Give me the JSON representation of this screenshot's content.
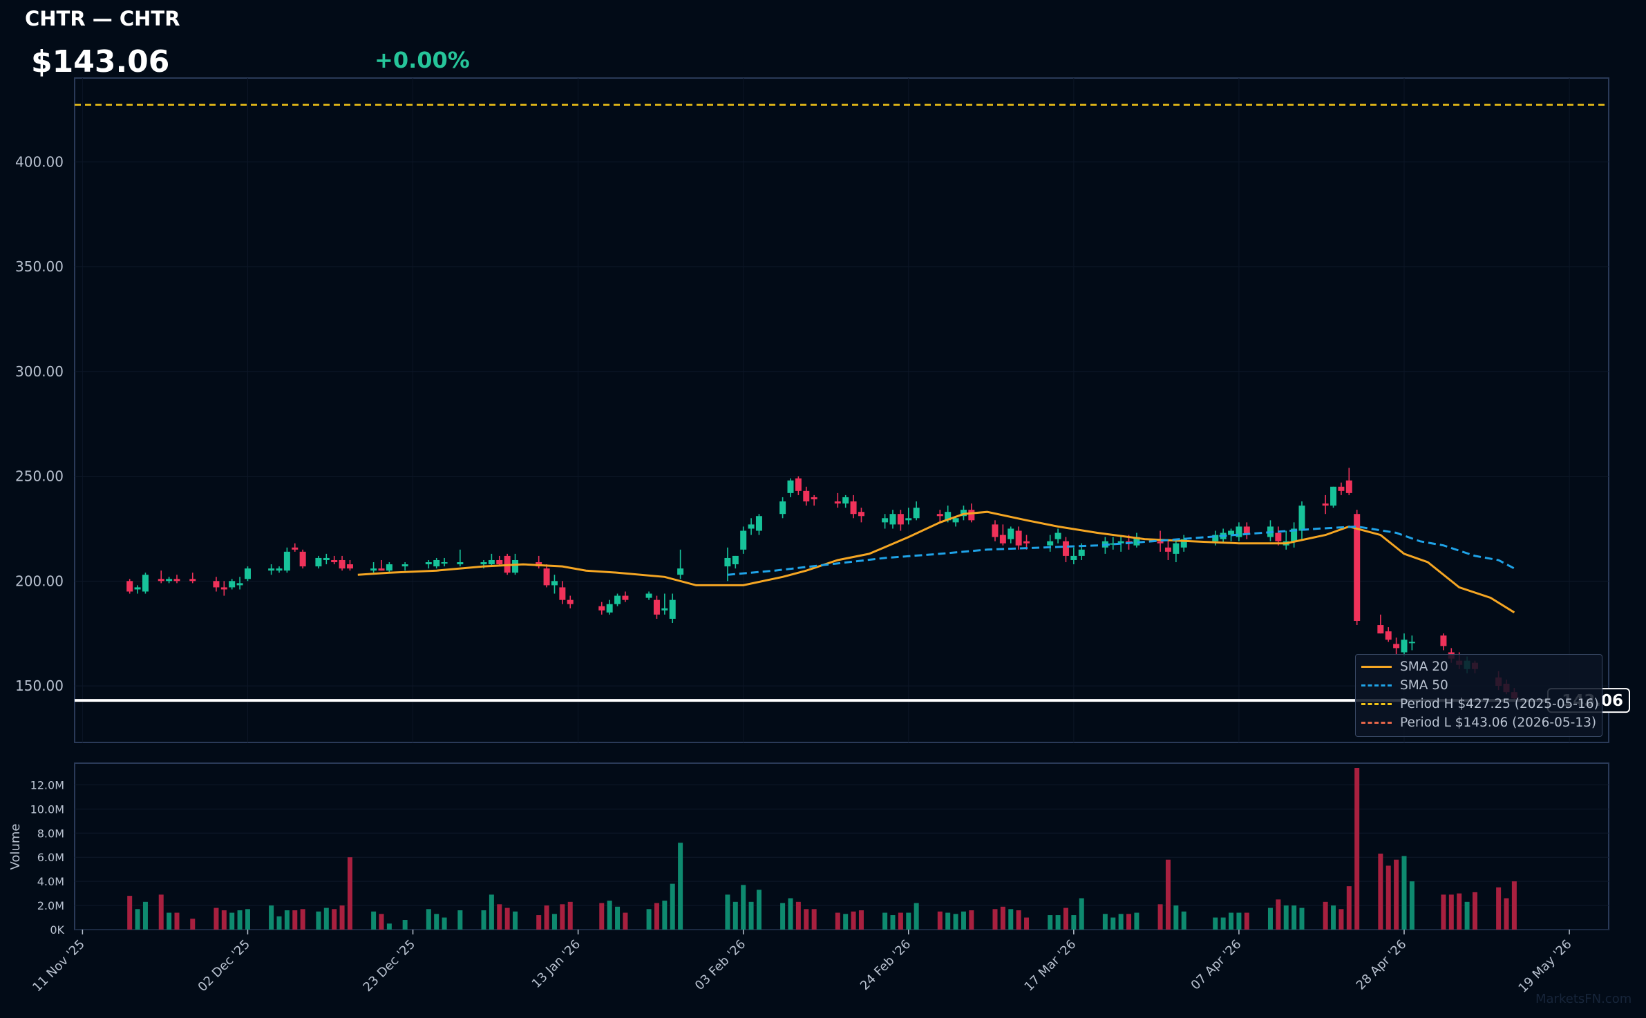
{
  "header": {
    "title": "CHTR — CHTR",
    "price": "$143.06",
    "change": "+0.00%"
  },
  "last_price_label": "143.06",
  "watermark": "MarketsFN.com",
  "legend": {
    "items": [
      {
        "label": "SMA 20",
        "color": "#f5a623",
        "style": "solid"
      },
      {
        "label": "SMA 50",
        "color": "#1fa3e8",
        "style": "dashed"
      },
      {
        "label": "Period H $427.25 (2025-05-16)",
        "color": "#f2c418",
        "style": "dashed"
      },
      {
        "label": "Period L $143.06 (2026-05-13)",
        "color": "#e8674a",
        "style": "dashed"
      }
    ]
  },
  "colors": {
    "up": "#17c39a",
    "down": "#f0325a",
    "vol_up": "#0e8a6f",
    "vol_down": "#a8203f",
    "sma20": "#f5a623",
    "sma50": "#1fa3e8",
    "period_high": "#f2c418",
    "last_price": "#ffffff",
    "background": "#020b17",
    "panel_border": "#2a3a58"
  },
  "chart_data": {
    "type": "candlestick",
    "price_axis": {
      "ticks": [
        "150.00",
        "200.00",
        "250.00",
        "300.00",
        "350.00",
        "400.00"
      ],
      "ylim": [
        123,
        440
      ]
    },
    "volume_axis": {
      "label": "Volume",
      "ticks": [
        "0K",
        "2.0M",
        "4.0M",
        "6.0M",
        "8.0M",
        "10.0M",
        "12.0M"
      ],
      "ylim": [
        0,
        13800000
      ]
    },
    "x_axis": {
      "ticks": [
        "11 Nov '25",
        "02 Dec '25",
        "23 Dec '25",
        "13 Jan '26",
        "03 Feb '26",
        "24 Feb '26",
        "17 Mar '26",
        "07 Apr '26",
        "28 Apr '26",
        "19 May '26"
      ],
      "xlim": [
        "2025-11-10",
        "2026-05-24"
      ]
    },
    "period_high": 427.25,
    "period_low": 143.06,
    "last_price": 143.06,
    "ohlc": [
      [
        "2025-11-17",
        200,
        201,
        194,
        195,
        2.8
      ],
      [
        "2025-11-18",
        196,
        198,
        194,
        197,
        1.7
      ],
      [
        "2025-11-19",
        195,
        204,
        194,
        203,
        2.3
      ],
      [
        "2025-11-21",
        201,
        205,
        199,
        200,
        2.9
      ],
      [
        "2025-11-22",
        200,
        202,
        199,
        201,
        1.4
      ],
      [
        "2025-11-23",
        201,
        203,
        199,
        200,
        1.4
      ],
      [
        "2025-11-25",
        201,
        204,
        199,
        200,
        0.9
      ],
      [
        "2025-11-28",
        200,
        202,
        195,
        197,
        1.8
      ],
      [
        "2025-11-29",
        197,
        200,
        193,
        196,
        1.6
      ],
      [
        "2025-11-30",
        197,
        201,
        196,
        200,
        1.4
      ],
      [
        "2025-12-01",
        198,
        202,
        196,
        199,
        1.6
      ],
      [
        "2025-12-02",
        201,
        207,
        200,
        206,
        1.7
      ],
      [
        "2025-12-05",
        205,
        208,
        203,
        206,
        2.0
      ],
      [
        "2025-12-06",
        205,
        207,
        204,
        206,
        1.1
      ],
      [
        "2025-12-07",
        205,
        216,
        204,
        214,
        1.6
      ],
      [
        "2025-12-08",
        216,
        218,
        214,
        215,
        1.6
      ],
      [
        "2025-12-09",
        214,
        215,
        206,
        207,
        1.7
      ],
      [
        "2025-12-11",
        207,
        212,
        206,
        211,
        1.5
      ],
      [
        "2025-12-12",
        210,
        213,
        208,
        211,
        1.8
      ],
      [
        "2025-12-13",
        210,
        212,
        208,
        209,
        1.7
      ],
      [
        "2025-12-14",
        210,
        212,
        205,
        206,
        2.0
      ],
      [
        "2025-12-15",
        208,
        210,
        205,
        206,
        6.0
      ],
      [
        "2025-12-18",
        205,
        209,
        204,
        206,
        1.5
      ],
      [
        "2025-12-19",
        206,
        210,
        205,
        205,
        1.3
      ],
      [
        "2025-12-20",
        205,
        209,
        204,
        208,
        0.5
      ],
      [
        "2025-12-22",
        207,
        209,
        205,
        208,
        0.8
      ],
      [
        "2025-12-25",
        208,
        210,
        206,
        209,
        1.7
      ],
      [
        "2025-12-26",
        207,
        211,
        206,
        210,
        1.3
      ],
      [
        "2025-12-27",
        209,
        211,
        207,
        209,
        1.0
      ],
      [
        "2025-12-29",
        208,
        215,
        207,
        209,
        1.6
      ],
      [
        "2026-01-01",
        208,
        210,
        206,
        209,
        1.6
      ],
      [
        "2026-01-02",
        208,
        213,
        207,
        210,
        2.9
      ],
      [
        "2026-01-03",
        210,
        212,
        207,
        208,
        2.1
      ],
      [
        "2026-01-04",
        212,
        213,
        203,
        204,
        1.8
      ],
      [
        "2026-01-05",
        204,
        213,
        203,
        210,
        1.5
      ],
      [
        "2026-01-08",
        209,
        212,
        206,
        207,
        1.2
      ],
      [
        "2026-01-09",
        206,
        208,
        197,
        198,
        2.0
      ],
      [
        "2026-01-10",
        198,
        203,
        194,
        200,
        1.3
      ],
      [
        "2026-01-11",
        197,
        200,
        189,
        191,
        2.1
      ],
      [
        "2026-01-12",
        191,
        193,
        187,
        189,
        2.3
      ],
      [
        "2026-01-16",
        188,
        190,
        184,
        186,
        2.2
      ],
      [
        "2026-01-17",
        185,
        191,
        184,
        189,
        2.4
      ],
      [
        "2026-01-18",
        189,
        194,
        188,
        193,
        1.9
      ],
      [
        "2026-01-19",
        193,
        195,
        190,
        191,
        1.4
      ],
      [
        "2026-01-22",
        192,
        195,
        191,
        194,
        1.7
      ],
      [
        "2026-01-23",
        191,
        193,
        182,
        184,
        2.2
      ],
      [
        "2026-01-24",
        186,
        194,
        184,
        187,
        2.4
      ],
      [
        "2026-01-25",
        182,
        194,
        180,
        191,
        3.8
      ],
      [
        "2026-01-26",
        203,
        215,
        201,
        206,
        7.2
      ],
      [
        "2026-02-01",
        207,
        216,
        200,
        211,
        2.9
      ],
      [
        "2026-02-02",
        208,
        212,
        206,
        212,
        2.3
      ],
      [
        "2026-02-03",
        215,
        226,
        213,
        224,
        3.7
      ],
      [
        "2026-02-04",
        225,
        230,
        222,
        227,
        2.3
      ],
      [
        "2026-02-05",
        224,
        232,
        222,
        231,
        3.3
      ],
      [
        "2026-02-08",
        232,
        240,
        230,
        238,
        2.2
      ],
      [
        "2026-02-09",
        242,
        249,
        240,
        248,
        2.6
      ],
      [
        "2026-02-10",
        249,
        250,
        241,
        243,
        2.3
      ],
      [
        "2026-02-11",
        243,
        245,
        236,
        238,
        1.7
      ],
      [
        "2026-02-12",
        240,
        241,
        236,
        239,
        1.7
      ],
      [
        "2026-02-15",
        238,
        242,
        235,
        237,
        1.4
      ],
      [
        "2026-02-16",
        237,
        241,
        235,
        240,
        1.3
      ],
      [
        "2026-02-17",
        238,
        241,
        230,
        232,
        1.5
      ],
      [
        "2026-02-18",
        233,
        235,
        228,
        231,
        1.6
      ],
      [
        "2026-02-21",
        228,
        232,
        225,
        230,
        1.4
      ],
      [
        "2026-02-22",
        227,
        234,
        225,
        232,
        1.2
      ],
      [
        "2026-02-23",
        232,
        234,
        224,
        227,
        1.4
      ],
      [
        "2026-02-24",
        229,
        235,
        227,
        230,
        1.4
      ],
      [
        "2026-02-25",
        230,
        238,
        229,
        235,
        2.2
      ],
      [
        "2026-02-28",
        232,
        234,
        228,
        231,
        1.5
      ],
      [
        "2026-03-01",
        229,
        236,
        228,
        233,
        1.4
      ],
      [
        "2026-03-02",
        228,
        231,
        226,
        230,
        1.3
      ],
      [
        "2026-03-03",
        231,
        236,
        229,
        234,
        1.5
      ],
      [
        "2026-03-04",
        234,
        237,
        228,
        229,
        1.6
      ],
      [
        "2026-03-07",
        227,
        229,
        219,
        221,
        1.7
      ],
      [
        "2026-03-08",
        222,
        227,
        217,
        218,
        1.9
      ],
      [
        "2026-03-09",
        220,
        226,
        218,
        225,
        1.7
      ],
      [
        "2026-03-10",
        224,
        226,
        215,
        217,
        1.6
      ],
      [
        "2026-03-11",
        219,
        222,
        215,
        218,
        1.0
      ],
      [
        "2026-03-14",
        217,
        222,
        214,
        219,
        1.2
      ],
      [
        "2026-03-15",
        220,
        225,
        218,
        223,
        1.2
      ],
      [
        "2026-03-16",
        219,
        221,
        209,
        212,
        1.8
      ],
      [
        "2026-03-17",
        210,
        216,
        208,
        212,
        1.2
      ],
      [
        "2026-03-18",
        212,
        218,
        210,
        215,
        2.6
      ],
      [
        "2026-03-21",
        216,
        221,
        213,
        219,
        1.3
      ],
      [
        "2026-03-22",
        218,
        221,
        215,
        218,
        1.0
      ],
      [
        "2026-03-23",
        218,
        222,
        214,
        219,
        1.3
      ],
      [
        "2026-03-24",
        219,
        222,
        215,
        218,
        1.3
      ],
      [
        "2026-03-25",
        217,
        223,
        216,
        221,
        1.4
      ],
      [
        "2026-03-28",
        219,
        224,
        214,
        218,
        2.1
      ],
      [
        "2026-03-29",
        216,
        220,
        210,
        214,
        5.8
      ],
      [
        "2026-03-30",
        213,
        220,
        209,
        218,
        2.0
      ],
      [
        "2026-03-31",
        216,
        222,
        214,
        220,
        1.5
      ],
      [
        "2026-04-04",
        219,
        224,
        217,
        222,
        1.0
      ],
      [
        "2026-04-05",
        220,
        225,
        218,
        223,
        1.0
      ],
      [
        "2026-04-06",
        222,
        225,
        219,
        224,
        1.4
      ],
      [
        "2026-04-07",
        221,
        228,
        219,
        226,
        1.4
      ],
      [
        "2026-04-08",
        226,
        228,
        220,
        222,
        1.4
      ],
      [
        "2026-04-11",
        221,
        229,
        219,
        226,
        1.8
      ],
      [
        "2026-04-12",
        223,
        226,
        217,
        219,
        2.5
      ],
      [
        "2026-04-13",
        217,
        224,
        215,
        219,
        2.0
      ],
      [
        "2026-04-14",
        219,
        228,
        216,
        225,
        2.0
      ],
      [
        "2026-04-15",
        224,
        238,
        220,
        236,
        1.8
      ],
      [
        "2026-04-18",
        237,
        241,
        232,
        236,
        2.3
      ],
      [
        "2026-04-19",
        236,
        245,
        235,
        245,
        2.0
      ],
      [
        "2026-04-20",
        245,
        247,
        241,
        243,
        1.7
      ],
      [
        "2026-04-21",
        248,
        254,
        241,
        242,
        3.6
      ],
      [
        "2026-04-22",
        232,
        234,
        179,
        181,
        13.4
      ],
      [
        "2026-04-25",
        179,
        184,
        175,
        175,
        6.3
      ],
      [
        "2026-04-26",
        176,
        178,
        171,
        172,
        5.3
      ],
      [
        "2026-04-27",
        170,
        173,
        165,
        168,
        5.8
      ],
      [
        "2026-04-28",
        166,
        175,
        164,
        172,
        6.1
      ],
      [
        "2026-04-29",
        171,
        174,
        167,
        171,
        4.0
      ],
      [
        "2026-05-03",
        174,
        175,
        167,
        169,
        2.9
      ],
      [
        "2026-05-04",
        166,
        168,
        161,
        163,
        2.9
      ],
      [
        "2026-05-05",
        162,
        166,
        158,
        160,
        3.0
      ],
      [
        "2026-05-06",
        158,
        164,
        156,
        162,
        2.3
      ],
      [
        "2026-05-07",
        161,
        162,
        156,
        158,
        3.1
      ],
      [
        "2026-05-10",
        154,
        157,
        148,
        150,
        3.5
      ],
      [
        "2026-05-11",
        151,
        153,
        146,
        147,
        2.6
      ],
      [
        "2026-05-12",
        147,
        149,
        143,
        144,
        4.0
      ]
    ],
    "sma20": [
      [
        "2025-12-16",
        203
      ],
      [
        "2025-12-20",
        204
      ],
      [
        "2025-12-26",
        205
      ],
      [
        "2026-01-01",
        207
      ],
      [
        "2026-01-06",
        208
      ],
      [
        "2026-01-11",
        207
      ],
      [
        "2026-01-14",
        205
      ],
      [
        "2026-01-18",
        204
      ],
      [
        "2026-01-24",
        202
      ],
      [
        "2026-01-28",
        198
      ],
      [
        "2026-02-03",
        198
      ],
      [
        "2026-02-08",
        202
      ],
      [
        "2026-02-11",
        205
      ],
      [
        "2026-02-15",
        210
      ],
      [
        "2026-02-19",
        213
      ],
      [
        "2026-02-24",
        221
      ],
      [
        "2026-02-28",
        228
      ],
      [
        "2026-03-03",
        232
      ],
      [
        "2026-03-06",
        233
      ],
      [
        "2026-03-11",
        229
      ],
      [
        "2026-03-15",
        226
      ],
      [
        "2026-03-20",
        223
      ],
      [
        "2026-03-26",
        220
      ],
      [
        "2026-04-01",
        219
      ],
      [
        "2026-04-07",
        218
      ],
      [
        "2026-04-13",
        218
      ],
      [
        "2026-04-18",
        222
      ],
      [
        "2026-04-21",
        226
      ],
      [
        "2026-04-25",
        222
      ],
      [
        "2026-04-28",
        213
      ],
      [
        "2026-05-01",
        209
      ],
      [
        "2026-05-05",
        197
      ],
      [
        "2026-05-09",
        192
      ],
      [
        "2026-05-12",
        185
      ]
    ],
    "sma50": [
      [
        "2026-02-01",
        203
      ],
      [
        "2026-02-07",
        205
      ],
      [
        "2026-02-14",
        208
      ],
      [
        "2026-02-21",
        211
      ],
      [
        "2026-02-28",
        213
      ],
      [
        "2026-03-06",
        215
      ],
      [
        "2026-03-13",
        216
      ],
      [
        "2026-03-20",
        217
      ],
      [
        "2026-03-27",
        219
      ],
      [
        "2026-04-03",
        221
      ],
      [
        "2026-04-10",
        223
      ],
      [
        "2026-04-17",
        225
      ],
      [
        "2026-04-22",
        226
      ],
      [
        "2026-04-27",
        223
      ],
      [
        "2026-04-30",
        219
      ],
      [
        "2026-05-03",
        217
      ],
      [
        "2026-05-07",
        212
      ],
      [
        "2026-05-10",
        210
      ],
      [
        "2026-05-12",
        206
      ]
    ]
  }
}
